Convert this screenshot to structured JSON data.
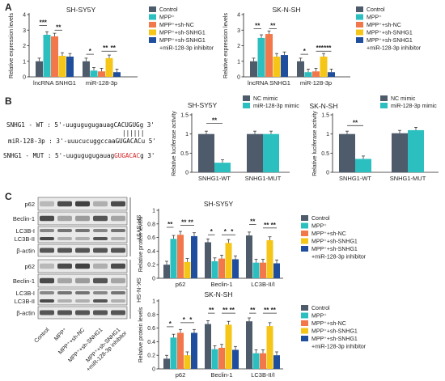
{
  "colors": {
    "control": "#4d5b6b",
    "mpp": "#2bbfbf",
    "shnc": "#f2784b",
    "shsnhg1": "#f5c518",
    "inhibitor": "#1f4e9e",
    "nc_mimic": "#4d5b6b",
    "mimic": "#2bbfbf"
  },
  "panels": {
    "a": "A",
    "b": "B",
    "c": "C"
  },
  "legend_a": [
    "Control",
    "MPP⁺",
    "MPP⁺+sh-NC",
    "MPP⁺+sh-SNHG1",
    "MPP⁺+sh-SNHG1",
    "+miR-128-3p inhibitor"
  ],
  "legend_b": [
    "NC mimic",
    "miR-128-3p mimic"
  ],
  "legend_c": [
    "Control",
    "MPP⁺",
    "MPP⁺+sh-NC",
    "MPP⁺+sh-SNHG1",
    "MPP⁺+sh-SNHG1",
    "+miR-128-3p inhibitor"
  ],
  "seq": {
    "wt_label": "SNHG1 - WT : 5'-uugugugugauag",
    "wt_site": "CACUGUG",
    "wt_end": "g 3'",
    "bars": "||||||",
    "mir_label": "miR-128-3p : 3'-uuucucuggccaa",
    "mir_site": "GUGACAC",
    "mir_end": "u 5'",
    "mut_label": "SNHG1 - MUT : 5'-uugugugugauag",
    "mut_site": "GUGACAC",
    "mut_end": "g 3'"
  },
  "blot": {
    "rows_top": [
      "p62",
      "Beclin-1",
      "LC3B-I",
      "LC3B-II",
      "β-actin"
    ],
    "rows_bottom": [
      "p62",
      "Beclin-1",
      "LC3B-I",
      "LC3B-II",
      "β-actin"
    ],
    "side_top": "SH-SY5Y",
    "side_bottom": "SK-N-SH",
    "lanes": [
      "Control",
      "MPP⁺",
      "MPP⁺+sh-NC",
      "MPP⁺+sh-SNHG1",
      "MPP⁺+sh-SNHG1",
      "+miR-128-3p inhibitor"
    ]
  },
  "chart_data": [
    {
      "id": "a1",
      "type": "bar",
      "title": "SH-SY5Y",
      "ylabel": "Relative expression levels",
      "ylim": [
        0,
        4
      ],
      "yticks": [
        0,
        1,
        2,
        3,
        4
      ],
      "categories": [
        "lncRNA SNHG1",
        "miR-128-3p"
      ],
      "series": [
        {
          "name": "Control",
          "values": [
            1.0,
            1.0
          ]
        },
        {
          "name": "MPP⁺",
          "values": [
            2.7,
            0.4
          ]
        },
        {
          "name": "MPP⁺+sh-NC",
          "values": [
            2.6,
            0.35
          ]
        },
        {
          "name": "MPP⁺+sh-SNHG1",
          "values": [
            1.35,
            1.2
          ]
        },
        {
          "name": "MPP⁺+sh-SNHG1 +miR-128-3p inhibitor",
          "values": [
            1.3,
            0.3
          ]
        }
      ],
      "annotations": [
        {
          "group": 0,
          "from": 0,
          "to": 1,
          "level": 3.3,
          "text": "***"
        },
        {
          "group": 0,
          "from": 2,
          "to": 3,
          "level": 3.0,
          "text": "**"
        },
        {
          "group": 1,
          "from": 0,
          "to": 1,
          "level": 1.45,
          "text": "*"
        },
        {
          "group": 1,
          "from": 2,
          "to": 3,
          "level": 1.65,
          "text": "**"
        },
        {
          "group": 1,
          "from": 3,
          "to": 4,
          "level": 1.65,
          "text": "**"
        }
      ]
    },
    {
      "id": "a2",
      "type": "bar",
      "title": "SK-N-SH",
      "ylabel": "Relative expression levels",
      "ylim": [
        0,
        4
      ],
      "yticks": [
        0,
        1,
        2,
        3,
        4
      ],
      "categories": [
        "lncRNA SNHG1",
        "miR-128-3p"
      ],
      "series": [
        {
          "name": "Control",
          "values": [
            1.0,
            1.0
          ]
        },
        {
          "name": "MPP⁺",
          "values": [
            2.5,
            0.3
          ]
        },
        {
          "name": "MPP⁺+sh-NC",
          "values": [
            2.75,
            0.35
          ]
        },
        {
          "name": "MPP⁺+sh-SNHG1",
          "values": [
            1.3,
            1.3
          ]
        },
        {
          "name": "MPP⁺+sh-SNHG1 +miR-128-3p inhibitor",
          "values": [
            1.4,
            0.3
          ]
        }
      ],
      "annotations": [
        {
          "group": 0,
          "from": 0,
          "to": 1,
          "level": 3.1,
          "text": "**"
        },
        {
          "group": 0,
          "from": 2,
          "to": 3,
          "level": 3.1,
          "text": "**"
        },
        {
          "group": 1,
          "from": 0,
          "to": 1,
          "level": 1.45,
          "text": "*"
        },
        {
          "group": 1,
          "from": 2,
          "to": 3,
          "level": 1.65,
          "text": "***"
        },
        {
          "group": 1,
          "from": 3,
          "to": 4,
          "level": 1.65,
          "text": "***"
        }
      ]
    },
    {
      "id": "b1",
      "type": "bar",
      "title": "SH-SY5Y",
      "ylabel": "Relative luciferase activity",
      "ylim": [
        0,
        1.5
      ],
      "yticks": [
        0,
        0.5,
        1.0,
        1.5
      ],
      "categories": [
        "SNHG1-WT",
        "SNHG1-MUT"
      ],
      "series": [
        {
          "name": "NC mimic",
          "values": [
            1.0,
            1.0
          ]
        },
        {
          "name": "miR-128-3p mimic",
          "values": [
            0.25,
            1.0
          ]
        }
      ],
      "annotations": [
        {
          "group": 0,
          "from": 0,
          "to": 1,
          "level": 1.28,
          "text": "**"
        }
      ]
    },
    {
      "id": "b2",
      "type": "bar",
      "title": "SK-N-SH",
      "ylabel": "Relative luciferase activity",
      "ylim": [
        0,
        1.5
      ],
      "yticks": [
        0,
        0.5,
        1.0,
        1.5
      ],
      "categories": [
        "SNHG1-WT",
        "SNHG1-MUT"
      ],
      "series": [
        {
          "name": "NC mimic",
          "values": [
            1.0,
            1.02
          ]
        },
        {
          "name": "miR-128-3p mimic",
          "values": [
            0.35,
            1.1
          ]
        }
      ],
      "annotations": [
        {
          "group": 0,
          "from": 0,
          "to": 1,
          "level": 1.22,
          "text": "**"
        }
      ]
    },
    {
      "id": "c1",
      "type": "bar",
      "title": "SH-SY5Y",
      "ylabel": "Relative protein levels",
      "ylim": [
        0,
        1.0
      ],
      "yticks": [
        0,
        0.2,
        0.4,
        0.6,
        0.8,
        1.0
      ],
      "categories": [
        "p62",
        "Beclin-1",
        "LC3B-II/I"
      ],
      "series": [
        {
          "name": "Control",
          "values": [
            0.2,
            0.53,
            0.63
          ]
        },
        {
          "name": "MPP⁺",
          "values": [
            0.58,
            0.25,
            0.23
          ]
        },
        {
          "name": "MPP⁺+sh-NC",
          "values": [
            0.64,
            0.29,
            0.23
          ]
        },
        {
          "name": "MPP⁺+sh-SNHG1",
          "values": [
            0.24,
            0.52,
            0.56
          ]
        },
        {
          "name": "MPP⁺+sh-SNHG1 +miR-128-3p inhibitor",
          "values": [
            0.62,
            0.28,
            0.22
          ]
        }
      ],
      "annotations": [
        {
          "group": 0,
          "from": 0,
          "to": 1,
          "level": 0.75,
          "text": "**"
        },
        {
          "group": 0,
          "from": 2,
          "to": 3,
          "level": 0.78,
          "text": "**"
        },
        {
          "group": 0,
          "from": 3,
          "to": 4,
          "level": 0.78,
          "text": "**"
        },
        {
          "group": 1,
          "from": 0,
          "to": 1,
          "level": 0.64,
          "text": "*"
        },
        {
          "group": 1,
          "from": 2,
          "to": 3,
          "level": 0.64,
          "text": "*"
        },
        {
          "group": 1,
          "from": 3,
          "to": 4,
          "level": 0.64,
          "text": "*"
        },
        {
          "group": 2,
          "from": 0,
          "to": 1,
          "level": 0.79,
          "text": "**"
        },
        {
          "group": 2,
          "from": 2,
          "to": 3,
          "level": 0.74,
          "text": "**"
        },
        {
          "group": 2,
          "from": 3,
          "to": 4,
          "level": 0.74,
          "text": "**"
        }
      ]
    },
    {
      "id": "c2",
      "type": "bar",
      "title": "SK-N-SH",
      "ylabel": "Relative protein levels",
      "ylim": [
        0,
        1.0
      ],
      "yticks": [
        0,
        0.2,
        0.4,
        0.6,
        0.8,
        1.0
      ],
      "categories": [
        "p62",
        "Beclin-1",
        "LC3B-II/I"
      ],
      "series": [
        {
          "name": "Control",
          "values": [
            0.15,
            0.66,
            0.7
          ]
        },
        {
          "name": "MPP⁺",
          "values": [
            0.46,
            0.29,
            0.23
          ]
        },
        {
          "name": "MPP⁺+sh-NC",
          "values": [
            0.53,
            0.31,
            0.23
          ]
        },
        {
          "name": "MPP⁺+sh-SNHG1",
          "values": [
            0.2,
            0.65,
            0.63
          ]
        },
        {
          "name": "MPP⁺+sh-SNHG1 +miR-128-3p inhibitor",
          "values": [
            0.53,
            0.28,
            0.2
          ]
        }
      ],
      "annotations": [
        {
          "group": 0,
          "from": 0,
          "to": 1,
          "level": 0.62,
          "text": "*"
        },
        {
          "group": 0,
          "from": 2,
          "to": 3,
          "level": 0.68,
          "text": "*"
        },
        {
          "group": 0,
          "from": 3,
          "to": 4,
          "level": 0.68,
          "text": "*"
        },
        {
          "group": 1,
          "from": 0,
          "to": 1,
          "level": 0.82,
          "text": "**"
        },
        {
          "group": 1,
          "from": 2,
          "to": 3,
          "level": 0.82,
          "text": "**"
        },
        {
          "group": 1,
          "from": 3,
          "to": 4,
          "level": 0.82,
          "text": "**"
        },
        {
          "group": 2,
          "from": 0,
          "to": 1,
          "level": 0.82,
          "text": "**"
        },
        {
          "group": 2,
          "from": 2,
          "to": 3,
          "level": 0.82,
          "text": "**"
        },
        {
          "group": 2,
          "from": 3,
          "to": 4,
          "level": 0.82,
          "text": "**"
        }
      ]
    }
  ]
}
